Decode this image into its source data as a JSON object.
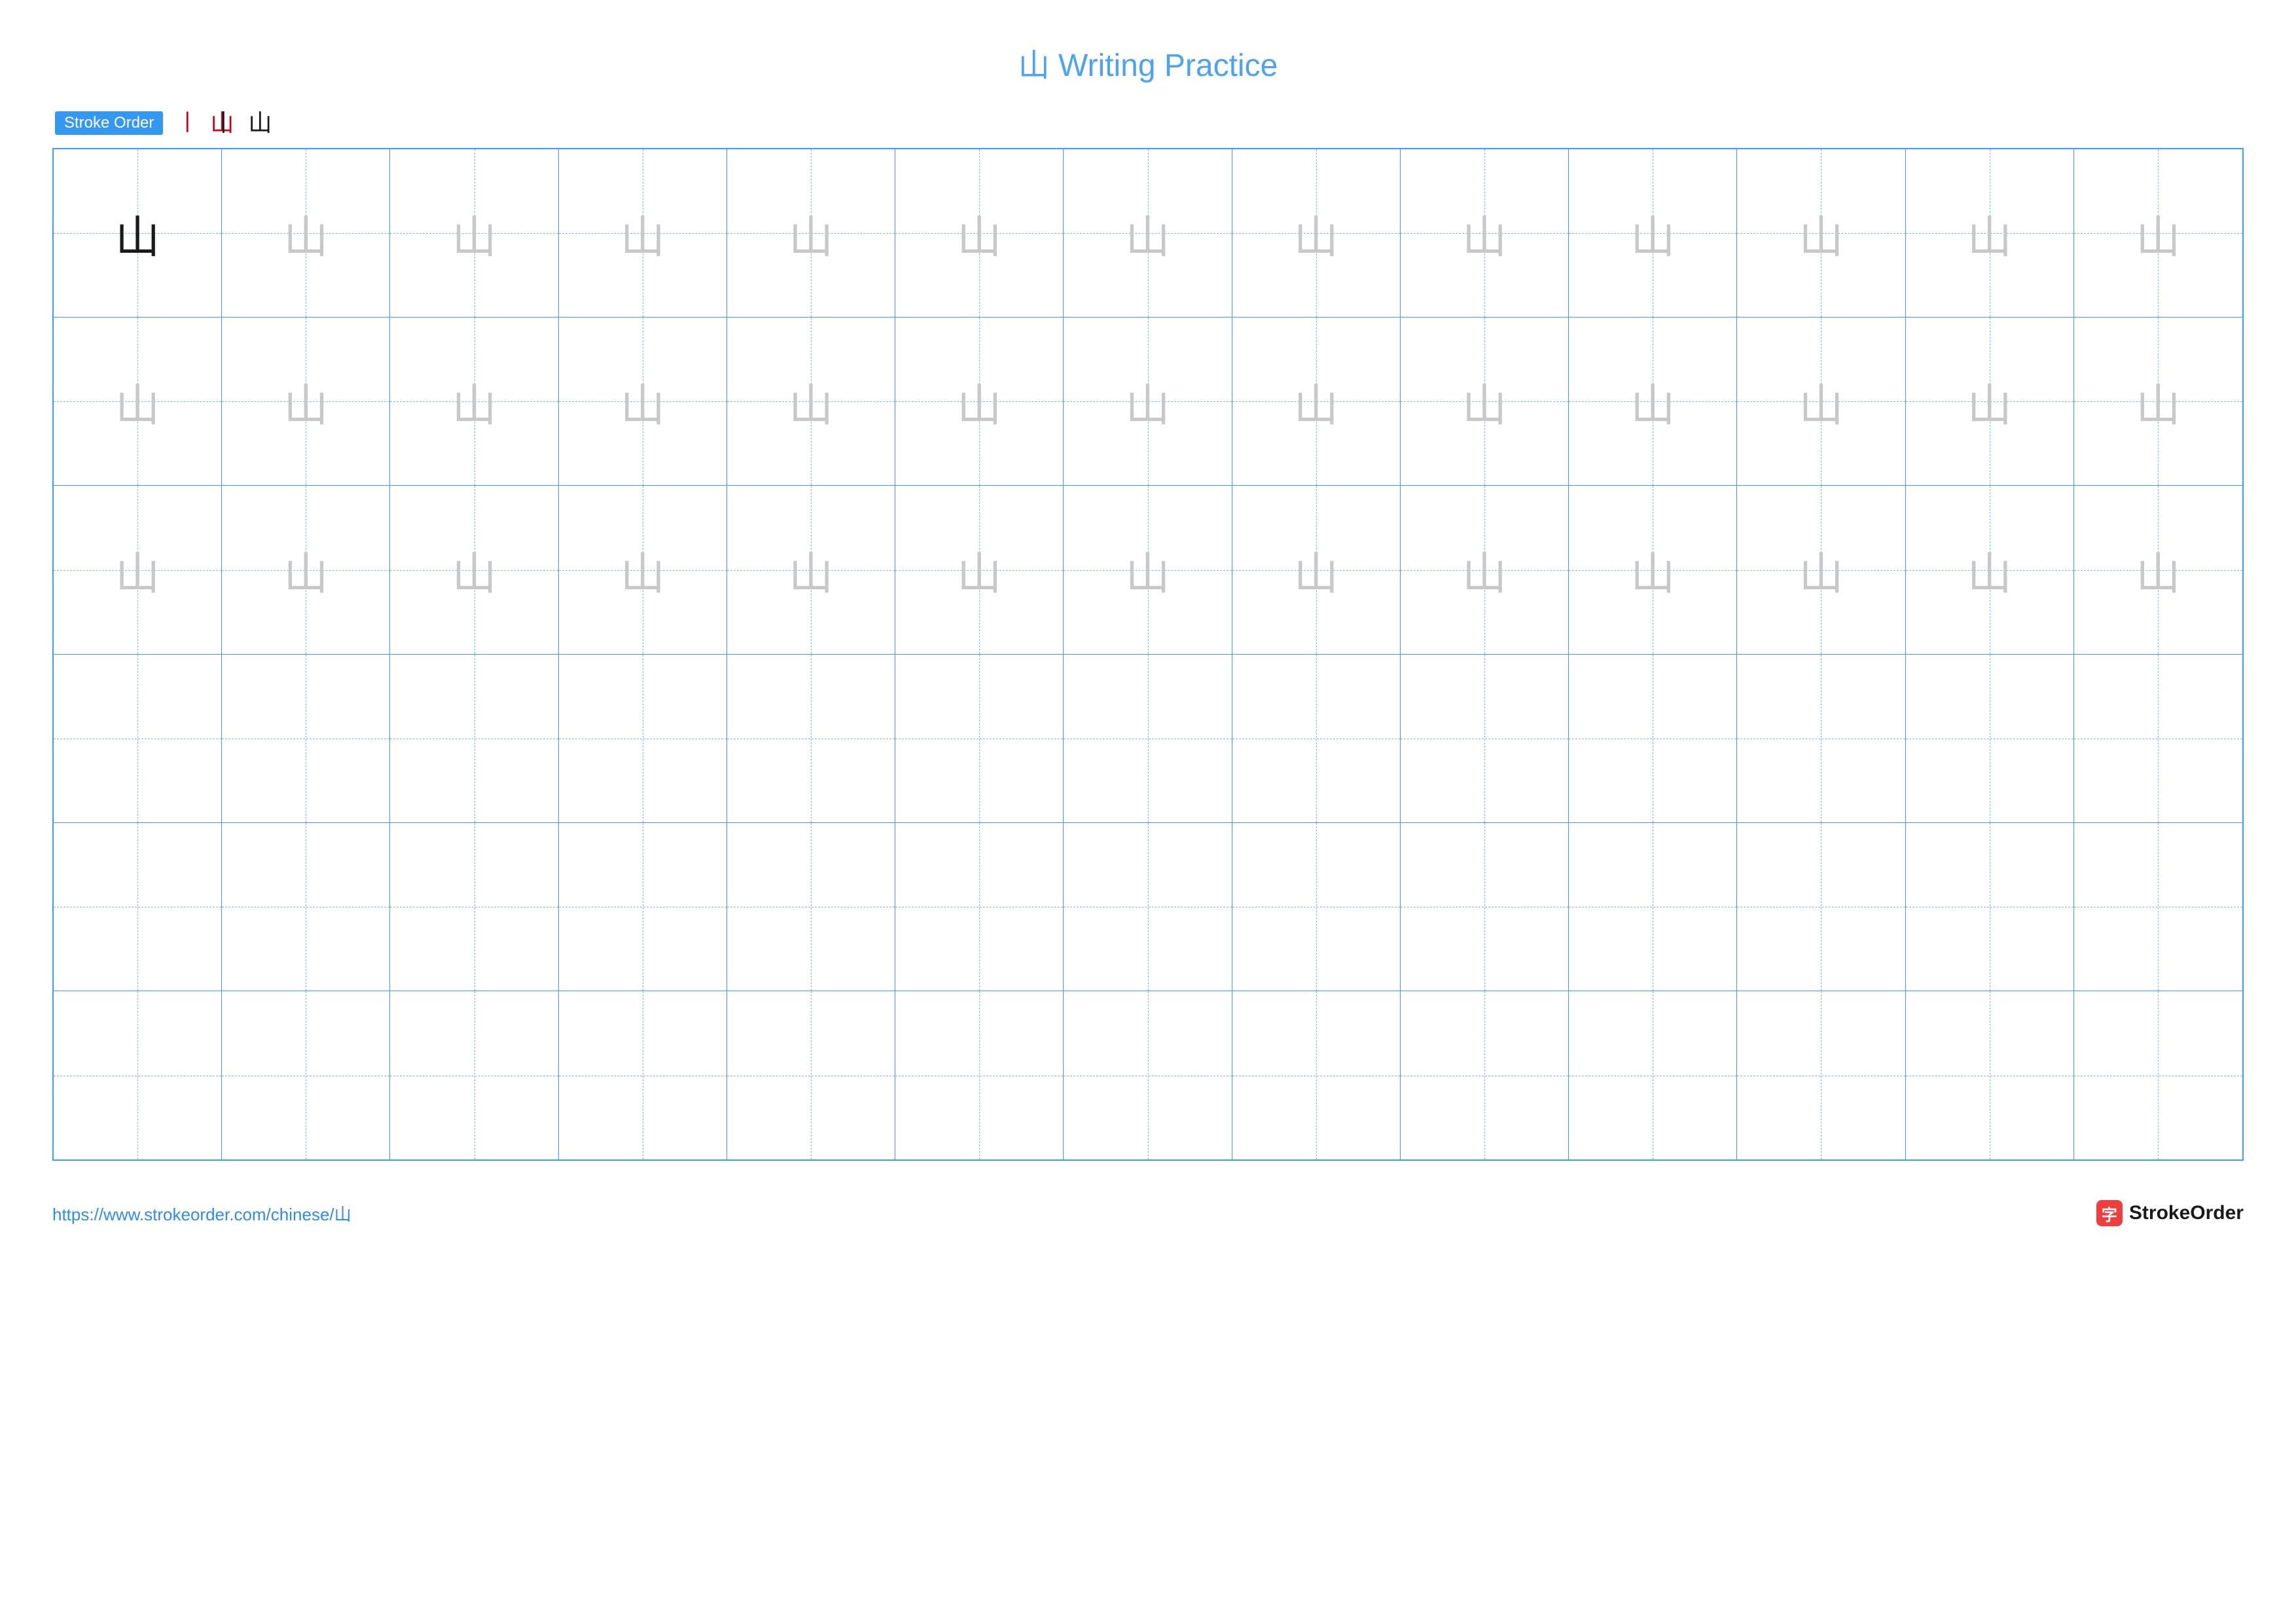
{
  "title": "山 Writing Practice",
  "character": "山",
  "colors": {
    "title": "#4da3f0",
    "stroke_label_bg": "#3498f0",
    "stroke_label_text": "#ffffff",
    "grid_border": "#3d9df5",
    "grid_dash": "#7ab8f0",
    "char_dark": "#1a1a1a",
    "char_trace": "#c8c8c8",
    "stroke_red": "#d0021b",
    "stroke_black": "#1a1a1a",
    "url": "#2e8bf0",
    "logo_bg": "#f03e3e",
    "logo_text": "#1a1a1a"
  },
  "stroke_order": {
    "label": "Stroke Order",
    "steps": [
      "丨",
      "山",
      "山"
    ]
  },
  "grid": {
    "cols": 13,
    "rows": 6,
    "trace_rows": 3,
    "model_cell": [
      0,
      0
    ],
    "cell_font_size": 68
  },
  "footer": {
    "url": "https://www.strokeorder.com/chinese/山",
    "logo_char": "字",
    "logo_text": "StrokeOrder"
  }
}
